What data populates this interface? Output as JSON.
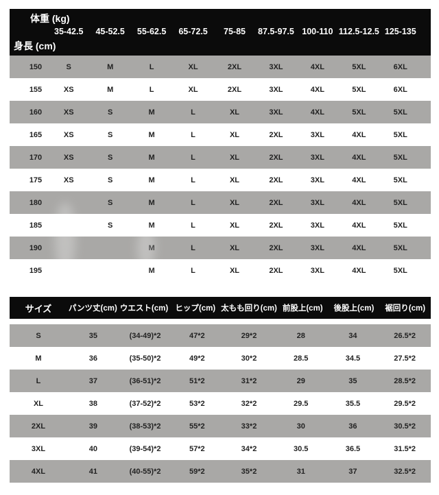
{
  "colors": {
    "page_bg": "#ffffff",
    "header_bg": "#0b0b0b",
    "header_text": "#ffffff",
    "row_gray": "#a9a8a6",
    "row_white": "#ffffff",
    "cell_text": "#222222"
  },
  "size_chart": {
    "weight_axis_label": "体重 (kg)",
    "height_axis_label": "身長 (cm)",
    "weight_ranges": [
      "35-42.5",
      "45-52.5",
      "55-62.5",
      "65-72.5",
      "75-85",
      "87.5-97.5",
      "100-110",
      "112.5-12.5",
      "125-135"
    ],
    "rows": [
      {
        "height": "150",
        "sizes": [
          "S",
          "M",
          "L",
          "XL",
          "2XL",
          "3XL",
          "4XL",
          "5XL",
          "6XL"
        ]
      },
      {
        "height": "155",
        "sizes": [
          "XS",
          "M",
          "L",
          "XL",
          "2XL",
          "3XL",
          "4XL",
          "5XL",
          "6XL"
        ]
      },
      {
        "height": "160",
        "sizes": [
          "XS",
          "S",
          "M",
          "L",
          "XL",
          "3XL",
          "4XL",
          "5XL",
          "5XL"
        ]
      },
      {
        "height": "165",
        "sizes": [
          "XS",
          "S",
          "M",
          "L",
          "XL",
          "2XL",
          "3XL",
          "4XL",
          "5XL"
        ]
      },
      {
        "height": "170",
        "sizes": [
          "XS",
          "S",
          "M",
          "L",
          "XL",
          "2XL",
          "3XL",
          "4XL",
          "5XL"
        ]
      },
      {
        "height": "175",
        "sizes": [
          "XS",
          "S",
          "M",
          "L",
          "XL",
          "2XL",
          "3XL",
          "4XL",
          "5XL"
        ]
      },
      {
        "height": "180",
        "sizes": [
          "",
          "S",
          "M",
          "L",
          "XL",
          "2XL",
          "3XL",
          "4XL",
          "5XL"
        ]
      },
      {
        "height": "185",
        "sizes": [
          "",
          "S",
          "M",
          "L",
          "XL",
          "2XL",
          "3XL",
          "4XL",
          "5XL"
        ]
      },
      {
        "height": "190",
        "sizes": [
          "",
          "",
          "M",
          "L",
          "XL",
          "2XL",
          "3XL",
          "4XL",
          "5XL"
        ]
      },
      {
        "height": "195",
        "sizes": [
          "",
          "",
          "M",
          "L",
          "XL",
          "2XL",
          "3XL",
          "4XL",
          "5XL"
        ]
      }
    ]
  },
  "measurement_chart": {
    "headers": [
      "サイズ",
      "パンツ丈(cm)",
      "ウエスト(cm)",
      "ヒップ(cm)",
      "太もも回り(cm)",
      "前股上(cm)",
      "後股上(cm)",
      "裾回り(cm)"
    ],
    "rows": [
      {
        "size": "S",
        "values": [
          "35",
          "(34-49)*2",
          "47*2",
          "29*2",
          "28",
          "34",
          "26.5*2"
        ]
      },
      {
        "size": "M",
        "values": [
          "36",
          "(35-50)*2",
          "49*2",
          "30*2",
          "28.5",
          "34.5",
          "27.5*2"
        ]
      },
      {
        "size": "L",
        "values": [
          "37",
          "(36-51)*2",
          "51*2",
          "31*2",
          "29",
          "35",
          "28.5*2"
        ]
      },
      {
        "size": "XL",
        "values": [
          "38",
          "(37-52)*2",
          "53*2",
          "32*2",
          "29.5",
          "35.5",
          "29.5*2"
        ]
      },
      {
        "size": "2XL",
        "values": [
          "39",
          "(38-53)*2",
          "55*2",
          "33*2",
          "30",
          "36",
          "30.5*2"
        ]
      },
      {
        "size": "3XL",
        "values": [
          "40",
          "(39-54)*2",
          "57*2",
          "34*2",
          "30.5",
          "36.5",
          "31.5*2"
        ]
      },
      {
        "size": "4XL",
        "values": [
          "41",
          "(40-55)*2",
          "59*2",
          "35*2",
          "31",
          "37",
          "32.5*2"
        ]
      }
    ]
  },
  "chart_data": [
    {
      "type": "table",
      "title": "",
      "column_axis_label": "体重 (kg)",
      "row_axis_label": "身長 (cm)",
      "columns": [
        "身長 (cm)",
        "35-42.5",
        "45-52.5",
        "55-62.5",
        "65-72.5",
        "75-85",
        "87.5-97.5",
        "100-110",
        "112.5-12.5",
        "125-135"
      ],
      "rows": [
        [
          "150",
          "S",
          "M",
          "L",
          "XL",
          "2XL",
          "3XL",
          "4XL",
          "5XL",
          "6XL"
        ],
        [
          "155",
          "XS",
          "M",
          "L",
          "XL",
          "2XL",
          "3XL",
          "4XL",
          "5XL",
          "6XL"
        ],
        [
          "160",
          "XS",
          "S",
          "M",
          "L",
          "XL",
          "3XL",
          "4XL",
          "5XL",
          "5XL"
        ],
        [
          "165",
          "XS",
          "S",
          "M",
          "L",
          "XL",
          "2XL",
          "3XL",
          "4XL",
          "5XL"
        ],
        [
          "170",
          "XS",
          "S",
          "M",
          "L",
          "XL",
          "2XL",
          "3XL",
          "4XL",
          "5XL"
        ],
        [
          "175",
          "XS",
          "S",
          "M",
          "L",
          "XL",
          "2XL",
          "3XL",
          "4XL",
          "5XL"
        ],
        [
          "180",
          "",
          "S",
          "M",
          "L",
          "XL",
          "2XL",
          "3XL",
          "4XL",
          "5XL"
        ],
        [
          "185",
          "",
          "S",
          "M",
          "L",
          "XL",
          "2XL",
          "3XL",
          "4XL",
          "5XL"
        ],
        [
          "190",
          "",
          "",
          "M",
          "L",
          "XL",
          "2XL",
          "3XL",
          "4XL",
          "5XL"
        ],
        [
          "195",
          "",
          "",
          "M",
          "L",
          "XL",
          "2XL",
          "3XL",
          "4XL",
          "5XL"
        ]
      ],
      "layout": {
        "striped_rows": true,
        "stripe_color": "#a9a8a6",
        "header_style": "black-bar"
      }
    },
    {
      "type": "table",
      "title": "",
      "columns": [
        "サイズ",
        "パンツ丈(cm)",
        "ウエスト(cm)",
        "ヒップ(cm)",
        "太もも回り(cm)",
        "前股上(cm)",
        "後股上(cm)",
        "裾回り(cm)"
      ],
      "rows": [
        [
          "S",
          "35",
          "(34-49)*2",
          "47*2",
          "29*2",
          "28",
          "34",
          "26.5*2"
        ],
        [
          "M",
          "36",
          "(35-50)*2",
          "49*2",
          "30*2",
          "28.5",
          "34.5",
          "27.5*2"
        ],
        [
          "L",
          "37",
          "(36-51)*2",
          "51*2",
          "31*2",
          "29",
          "35",
          "28.5*2"
        ],
        [
          "XL",
          "38",
          "(37-52)*2",
          "53*2",
          "32*2",
          "29.5",
          "35.5",
          "29.5*2"
        ],
        [
          "2XL",
          "39",
          "(38-53)*2",
          "55*2",
          "33*2",
          "30",
          "36",
          "30.5*2"
        ],
        [
          "3XL",
          "40",
          "(39-54)*2",
          "57*2",
          "34*2",
          "30.5",
          "36.5",
          "31.5*2"
        ],
        [
          "4XL",
          "41",
          "(40-55)*2",
          "59*2",
          "35*2",
          "31",
          "37",
          "32.5*2"
        ]
      ],
      "layout": {
        "striped_rows": true,
        "stripe_color": "#a9a8a6",
        "header_style": "black-bar"
      }
    }
  ]
}
